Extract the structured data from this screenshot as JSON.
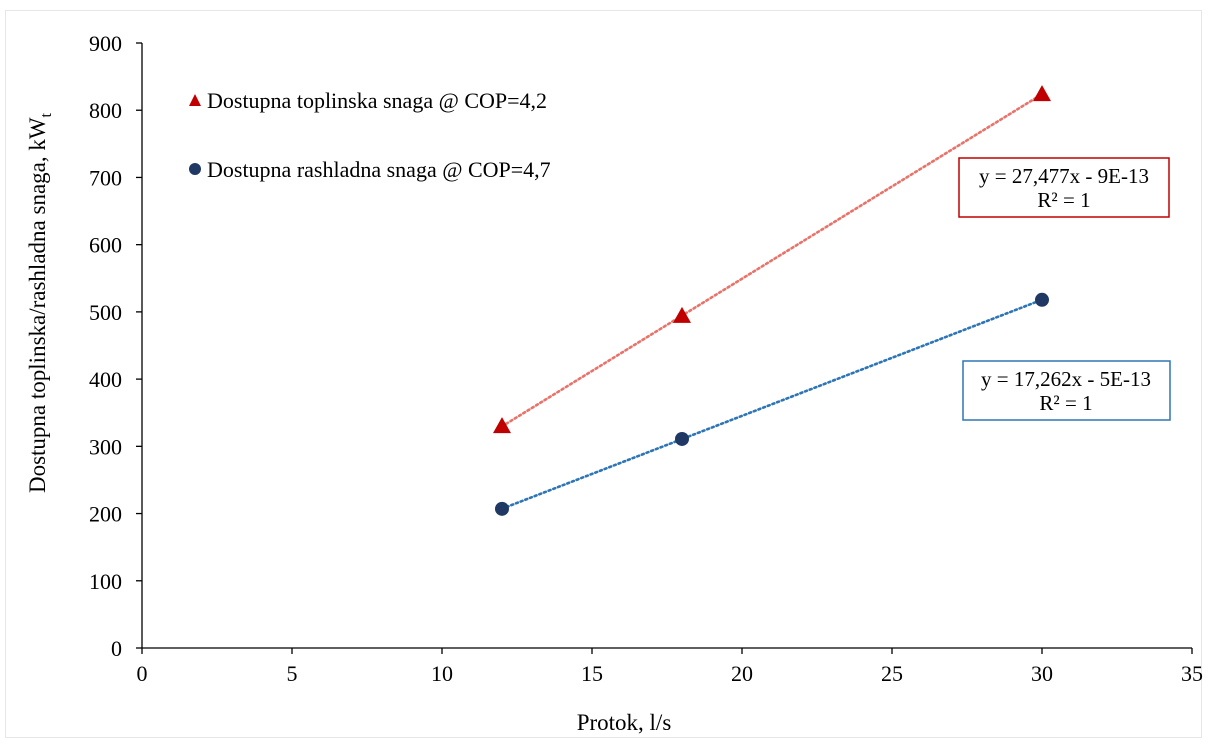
{
  "chart_data": {
    "type": "scatter",
    "xlabel": "Protok, l/s",
    "ylabel": "Dostupna toplinska/rashladna snaga, kW",
    "ylabel_subscript": "t",
    "xlim": [
      0,
      35
    ],
    "ylim": [
      0,
      900
    ],
    "x_ticks": [
      "0",
      "5",
      "10",
      "15",
      "20",
      "25",
      "30",
      "35"
    ],
    "y_ticks": [
      "0",
      "100",
      "200",
      "300",
      "400",
      "500",
      "600",
      "700",
      "800",
      "900"
    ],
    "grid": false,
    "legend_position": "top-left",
    "series": [
      {
        "name": "Dostupna toplinska snaga @ COP=4,2",
        "marker": "triangle",
        "color": "#c00000",
        "trendline_color": "#e8736a",
        "x": [
          12,
          18,
          30
        ],
        "y": [
          330,
          494,
          824
        ],
        "trendline": {
          "equation": "y = 27,477x - 9E-13",
          "r2": "R² = 1",
          "box_color": "#c00000"
        }
      },
      {
        "name": "Dostupna rashladna snaga @ COP=4,7",
        "marker": "circle",
        "color": "#1f3864",
        "trendline_color": "#2e75b6",
        "x": [
          12,
          18,
          30
        ],
        "y": [
          207,
          311,
          518
        ],
        "trendline": {
          "equation": "y = 17,262x - 5E-13",
          "r2": "R² = 1",
          "box_color": "#2e75b6"
        }
      }
    ]
  }
}
